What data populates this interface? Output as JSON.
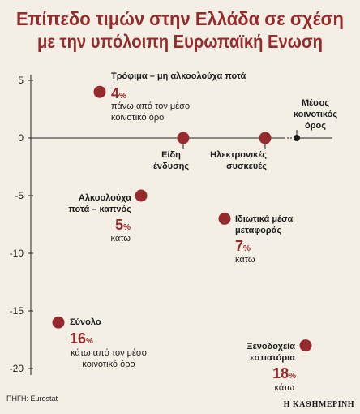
{
  "colors": {
    "accent": "#962b2d",
    "background": "#f3efe5",
    "reference_point": "#1a1a1a"
  },
  "chart_data": {
    "type": "scatter",
    "title_lines": [
      "Επίπεδο τιμών στην Ελλάδα σε σχέση",
      "με την υπόλοιπη Ευρωπαϊκή Ενωση"
    ],
    "unit": "%",
    "y_ticks": [
      5,
      0,
      -5,
      -10,
      -15,
      -20
    ],
    "ylim": [
      -20,
      5
    ],
    "grid": false,
    "reference": {
      "label_lines": [
        "Μέσος",
        "κοινοτικός",
        "όρος"
      ],
      "value": 0
    },
    "points": [
      {
        "label_lines": [
          "Τρόφιμα – μη αλκοολούχα ποτά"
        ],
        "value": 4,
        "value_label": "4",
        "note_lines": [
          "πάνω από τον μέσο",
          "κοινοτικό όρο"
        ]
      },
      {
        "label_lines": [
          "Είδη",
          "ένδυσης"
        ],
        "value": 0
      },
      {
        "label_lines": [
          "Ηλεκτρονικές",
          "συσκευές"
        ],
        "value": 0
      },
      {
        "label_lines": [
          "Αλκοολούχα",
          "ποτά – καπνός"
        ],
        "value": -5,
        "value_label": "5",
        "note_lines": [
          "κάτω"
        ]
      },
      {
        "label_lines": [
          "Ιδιωτικά μέσα",
          "μεταφοράς"
        ],
        "value": -7,
        "value_label": "7",
        "note_lines": [
          "κάτω"
        ]
      },
      {
        "label_lines": [
          "Σύνολο"
        ],
        "value": -16,
        "value_label": "16",
        "note_lines": [
          "κάτω από τον μέσο",
          "κοινοτικό όρο"
        ]
      },
      {
        "label_lines": [
          "Ξενοδοχεία",
          "εστιατόρια"
        ],
        "value": -18,
        "value_label": "18",
        "note_lines": [
          "κάτω"
        ]
      }
    ]
  },
  "source": "ΠΗΓΗ: Eurostat",
  "publisher": "Η ΚΑΘΗΜΕΡΙΝΗ"
}
